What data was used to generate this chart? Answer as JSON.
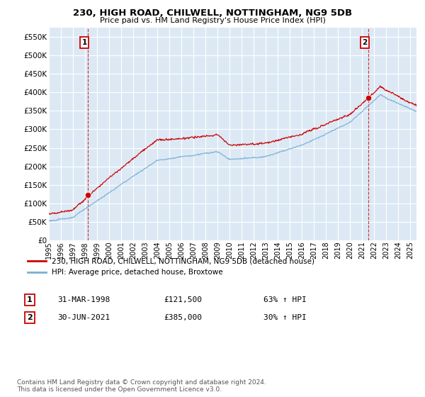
{
  "title": "230, HIGH ROAD, CHILWELL, NOTTINGHAM, NG9 5DB",
  "subtitle": "Price paid vs. HM Land Registry's House Price Index (HPI)",
  "ylim": [
    0,
    575000
  ],
  "yticks": [
    0,
    50000,
    100000,
    150000,
    200000,
    250000,
    300000,
    350000,
    400000,
    450000,
    500000,
    550000
  ],
  "xlim_start": 1995.0,
  "xlim_end": 2025.5,
  "red_color": "#cc0000",
  "blue_color": "#7aafd4",
  "plot_bg_color": "#dce9f5",
  "bg_color": "#ffffff",
  "grid_color": "#ffffff",
  "legend_label_red": "230, HIGH ROAD, CHILWELL, NOTTINGHAM, NG9 5DB (detached house)",
  "legend_label_blue": "HPI: Average price, detached house, Broxtowe",
  "annotation1_date": "31-MAR-1998",
  "annotation1_price": "£121,500",
  "annotation1_hpi": "63% ↑ HPI",
  "annotation2_date": "30-JUN-2021",
  "annotation2_price": "£385,000",
  "annotation2_hpi": "30% ↑ HPI",
  "footnote": "Contains HM Land Registry data © Crown copyright and database right 2024.\nThis data is licensed under the Open Government Licence v3.0.",
  "transaction1_x": 1998.25,
  "transaction1_y": 121500,
  "transaction2_x": 2021.5,
  "transaction2_y": 385000
}
